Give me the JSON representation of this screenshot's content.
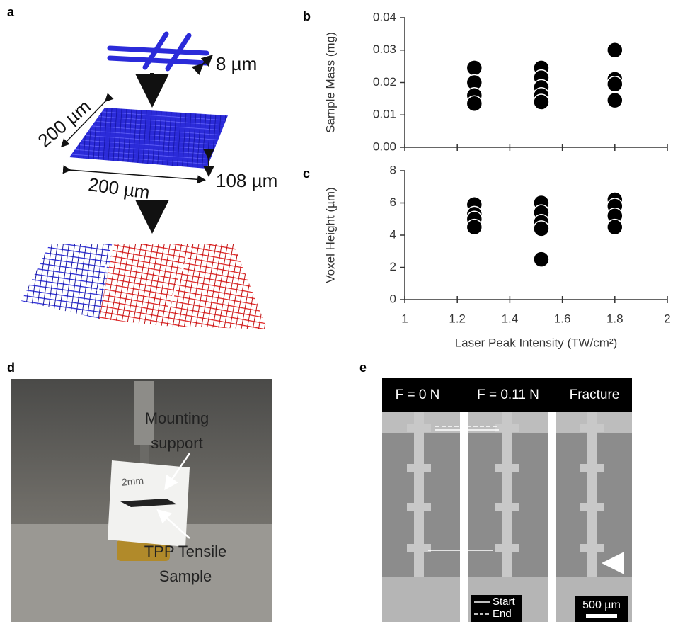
{
  "panel_labels": [
    "a",
    "b",
    "c",
    "d",
    "e"
  ],
  "chart_data": [
    {
      "type": "scatter",
      "ylabel": "Sample Mass (mg)",
      "color": "#000000",
      "x": [
        1.265,
        1.265,
        1.265,
        1.265,
        1.52,
        1.52,
        1.52,
        1.52,
        1.52,
        1.8,
        1.8,
        1.8,
        1.8
      ],
      "values": [
        0.0245,
        0.02,
        0.016,
        0.0135,
        0.0245,
        0.0215,
        0.0185,
        0.016,
        0.014,
        0.03,
        0.021,
        0.0195,
        0.0145
      ],
      "xlim": [
        1,
        2
      ],
      "xticks": [
        1,
        1.2,
        1.4,
        1.6,
        1.8,
        2
      ],
      "xtick_labels": false,
      "ylim": [
        0,
        0.04
      ],
      "yticks": [
        {
          "value": 0,
          "label": "0.00"
        },
        {
          "value": 0.01,
          "label": "0.01"
        },
        {
          "value": 0.02,
          "label": "0.02"
        },
        {
          "value": 0.03,
          "label": "0.03"
        },
        {
          "value": 0.04,
          "label": "0.04"
        }
      ]
    },
    {
      "type": "scatter",
      "ylabel": "Voxel Height (µm)",
      "xlabel": "Laser Peak Intensity (TW/cm²)",
      "color": "#000000",
      "x": [
        1.265,
        1.265,
        1.265,
        1.265,
        1.52,
        1.52,
        1.52,
        1.52,
        1.52,
        1.8,
        1.8,
        1.8,
        1.8
      ],
      "values": [
        5.9,
        5.3,
        5.0,
        4.5,
        6.0,
        5.4,
        4.8,
        4.4,
        2.5,
        6.2,
        5.8,
        5.2,
        4.5
      ],
      "xlim": [
        1,
        2
      ],
      "xticks": [
        1,
        1.2,
        1.4,
        1.6,
        1.8,
        2
      ],
      "xtick_labels": true,
      "ylim": [
        0,
        8
      ],
      "yticks": [
        0,
        2,
        4,
        6,
        8
      ]
    }
  ],
  "panel_a": {
    "dimensions": [
      "8 µm",
      "200 µm",
      "200 µm",
      "108 µm"
    ]
  },
  "panel_d": {
    "mounting_support": [
      "Mounting",
      "support"
    ],
    "tensile_sample": [
      "TPP Tensile",
      "Sample"
    ],
    "handwriting": "2mm"
  },
  "panel_e": {
    "headers": [
      "F = 0 N",
      "F = 0.11 N",
      "Fracture"
    ],
    "legend": [
      "Start",
      "End"
    ],
    "scale_bar": "500 µm"
  }
}
